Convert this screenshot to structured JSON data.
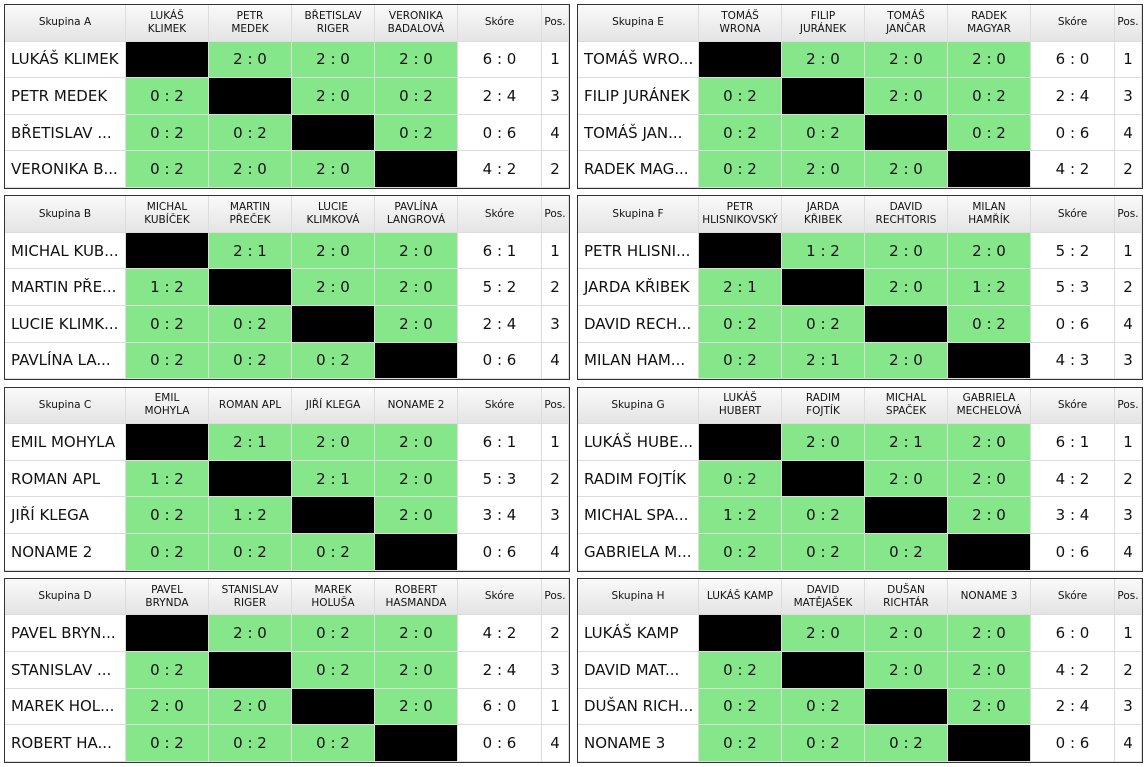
{
  "groups": [
    {
      "title": "Skupina A",
      "columns": [
        [
          "LUKÁŠ",
          "KLIMEK"
        ],
        [
          "PETR",
          "MEDEK"
        ],
        [
          "BŘETISLAV",
          "RIGER"
        ],
        [
          "VERONIKA",
          "BADALOVÁ"
        ]
      ],
      "score_label": "Skóre",
      "pos_label": "Pos.",
      "rows": [
        {
          "name": "LUKÁŠ KLIMEK",
          "results": [
            null,
            "2 : 0",
            "2 : 0",
            "2 : 0"
          ],
          "score": "6 : 0",
          "pos": 1
        },
        {
          "name": "PETR MEDEK",
          "results": [
            "0 : 2",
            null,
            "2 : 0",
            "0 : 2"
          ],
          "score": "2 : 4",
          "pos": 3
        },
        {
          "name": "BŘETISLAV ...",
          "results": [
            "0 : 2",
            "0 : 2",
            null,
            "0 : 2"
          ],
          "score": "0 : 6",
          "pos": 4
        },
        {
          "name": "VERONIKA B...",
          "results": [
            "0 : 2",
            "2 : 0",
            "2 : 0",
            null
          ],
          "score": "4 : 2",
          "pos": 2
        }
      ]
    },
    {
      "title": "Skupina B",
      "columns": [
        [
          "MICHAL",
          "KUBÍČEK"
        ],
        [
          "MARTIN",
          "PŘEČEK"
        ],
        [
          "LUCIE",
          "KLIMKOVÁ"
        ],
        [
          "PAVLÍNA",
          "LANGROVÁ"
        ]
      ],
      "score_label": "Skóre",
      "pos_label": "Pos.",
      "rows": [
        {
          "name": "MICHAL KUB...",
          "results": [
            null,
            "2 : 1",
            "2 : 0",
            "2 : 0"
          ],
          "score": "6 : 1",
          "pos": 1
        },
        {
          "name": "MARTIN PŘE...",
          "results": [
            "1 : 2",
            null,
            "2 : 0",
            "2 : 0"
          ],
          "score": "5 : 2",
          "pos": 2
        },
        {
          "name": "LUCIE KLIMK...",
          "results": [
            "0 : 2",
            "0 : 2",
            null,
            "2 : 0"
          ],
          "score": "2 : 4",
          "pos": 3
        },
        {
          "name": "PAVLÍNA LA...",
          "results": [
            "0 : 2",
            "0 : 2",
            "0 : 2",
            null
          ],
          "score": "0 : 6",
          "pos": 4
        }
      ]
    },
    {
      "title": "Skupina C",
      "columns": [
        [
          "EMIL",
          "MOHYLA"
        ],
        [
          "ROMAN APL"
        ],
        [
          "JIŘÍ KLEGA"
        ],
        [
          "NONAME 2"
        ]
      ],
      "score_label": "Skóre",
      "pos_label": "Pos.",
      "rows": [
        {
          "name": "EMIL MOHYLA",
          "results": [
            null,
            "2 : 1",
            "2 : 0",
            "2 : 0"
          ],
          "score": "6 : 1",
          "pos": 1
        },
        {
          "name": "ROMAN APL",
          "results": [
            "1 : 2",
            null,
            "2 : 1",
            "2 : 0"
          ],
          "score": "5 : 3",
          "pos": 2
        },
        {
          "name": "JIŘÍ KLEGA",
          "results": [
            "0 : 2",
            "1 : 2",
            null,
            "2 : 0"
          ],
          "score": "3 : 4",
          "pos": 3
        },
        {
          "name": "NONAME 2",
          "results": [
            "0 : 2",
            "0 : 2",
            "0 : 2",
            null
          ],
          "score": "0 : 6",
          "pos": 4
        }
      ]
    },
    {
      "title": "Skupina D",
      "columns": [
        [
          "PAVEL",
          "BRYNDA"
        ],
        [
          "STANISLAV",
          "RIGER"
        ],
        [
          "MAREK",
          "HOLUŠA"
        ],
        [
          "ROBERT",
          "HASMANDA"
        ]
      ],
      "score_label": "Skóre",
      "pos_label": "Pos.",
      "rows": [
        {
          "name": "PAVEL BRYN...",
          "results": [
            null,
            "2 : 0",
            "0 : 2",
            "2 : 0"
          ],
          "score": "4 : 2",
          "pos": 2
        },
        {
          "name": "STANISLAV ...",
          "results": [
            "0 : 2",
            null,
            "0 : 2",
            "2 : 0"
          ],
          "score": "2 : 4",
          "pos": 3
        },
        {
          "name": "MAREK HOL...",
          "results": [
            "2 : 0",
            "2 : 0",
            null,
            "2 : 0"
          ],
          "score": "6 : 0",
          "pos": 1
        },
        {
          "name": "ROBERT HA...",
          "results": [
            "0 : 2",
            "0 : 2",
            "0 : 2",
            null
          ],
          "score": "0 : 6",
          "pos": 4
        }
      ]
    },
    {
      "title": "Skupina E",
      "columns": [
        [
          "TOMÁŠ",
          "WRONA"
        ],
        [
          "FILIP",
          "JURÁNEK"
        ],
        [
          "TOMÁŠ",
          "JANČAR"
        ],
        [
          "RADEK",
          "MAGYAR"
        ]
      ],
      "score_label": "Skóre",
      "pos_label": "Pos.",
      "rows": [
        {
          "name": "TOMÁŠ WRO...",
          "results": [
            null,
            "2 : 0",
            "2 : 0",
            "2 : 0"
          ],
          "score": "6 : 0",
          "pos": 1
        },
        {
          "name": "FILIP JURÁNEK",
          "results": [
            "0 : 2",
            null,
            "2 : 0",
            "0 : 2"
          ],
          "score": "2 : 4",
          "pos": 3
        },
        {
          "name": "TOMÁŠ JAN...",
          "results": [
            "0 : 2",
            "0 : 2",
            null,
            "0 : 2"
          ],
          "score": "0 : 6",
          "pos": 4
        },
        {
          "name": "RADEK MAG...",
          "results": [
            "0 : 2",
            "2 : 0",
            "2 : 0",
            null
          ],
          "score": "4 : 2",
          "pos": 2
        }
      ]
    },
    {
      "title": "Skupina F",
      "columns": [
        [
          "PETR",
          "HLISNIKOVSKÝ"
        ],
        [
          "JARDA",
          "KŘIBEK"
        ],
        [
          "DAVID",
          "RECHTORIS"
        ],
        [
          "MILAN",
          "HAMŘÍK"
        ]
      ],
      "score_label": "Skóre",
      "pos_label": "Pos.",
      "rows": [
        {
          "name": "PETR HLISNI...",
          "results": [
            null,
            "1 : 2",
            "2 : 0",
            "2 : 0"
          ],
          "score": "5 : 2",
          "pos": 1
        },
        {
          "name": "JARDA KŘIBEK",
          "results": [
            "2 : 1",
            null,
            "2 : 0",
            "1 : 2"
          ],
          "score": "5 : 3",
          "pos": 2
        },
        {
          "name": "DAVID RECH...",
          "results": [
            "0 : 2",
            "0 : 2",
            null,
            "0 : 2"
          ],
          "score": "0 : 6",
          "pos": 4
        },
        {
          "name": "MILAN HAM...",
          "results": [
            "0 : 2",
            "2 : 1",
            "2 : 0",
            null
          ],
          "score": "4 : 3",
          "pos": 3
        }
      ]
    },
    {
      "title": "Skupina G",
      "columns": [
        [
          "LUKÁŠ",
          "HUBERT"
        ],
        [
          "RADIM",
          "FOJTÍK"
        ],
        [
          "MICHAL",
          "SPAČEK"
        ],
        [
          "GABRIELA",
          "MECHELOVÁ"
        ]
      ],
      "score_label": "Skóre",
      "pos_label": "Pos.",
      "rows": [
        {
          "name": "LUKÁŠ HUBE...",
          "results": [
            null,
            "2 : 0",
            "2 : 1",
            "2 : 0"
          ],
          "score": "6 : 1",
          "pos": 1
        },
        {
          "name": "RADIM FOJTÍK",
          "results": [
            "0 : 2",
            null,
            "2 : 0",
            "2 : 0"
          ],
          "score": "4 : 2",
          "pos": 2
        },
        {
          "name": "MICHAL SPA...",
          "results": [
            "1 : 2",
            "0 : 2",
            null,
            "2 : 0"
          ],
          "score": "3 : 4",
          "pos": 3
        },
        {
          "name": "GABRIELA M...",
          "results": [
            "0 : 2",
            "0 : 2",
            "0 : 2",
            null
          ],
          "score": "0 : 6",
          "pos": 4
        }
      ]
    },
    {
      "title": "Skupina H",
      "columns": [
        [
          "LUKÁŠ KAMP"
        ],
        [
          "DAVID",
          "MATĚJAŠEK"
        ],
        [
          "DUŠAN",
          "RICHTÁR"
        ],
        [
          "NONAME 3"
        ]
      ],
      "score_label": "Skóre",
      "pos_label": "Pos.",
      "rows": [
        {
          "name": "LUKÁŠ KAMP",
          "results": [
            null,
            "2 : 0",
            "2 : 0",
            "2 : 0"
          ],
          "score": "6 : 0",
          "pos": 1
        },
        {
          "name": "DAVID MAT...",
          "results": [
            "0 : 2",
            null,
            "2 : 0",
            "2 : 0"
          ],
          "score": "4 : 2",
          "pos": 2
        },
        {
          "name": "DUŠAN RICH...",
          "results": [
            "0 : 2",
            "0 : 2",
            null,
            "2 : 0"
          ],
          "score": "2 : 4",
          "pos": 3
        },
        {
          "name": "NONAME 3",
          "results": [
            "0 : 2",
            "0 : 2",
            "0 : 2",
            null
          ],
          "score": "0 : 6",
          "pos": 4
        }
      ]
    }
  ]
}
